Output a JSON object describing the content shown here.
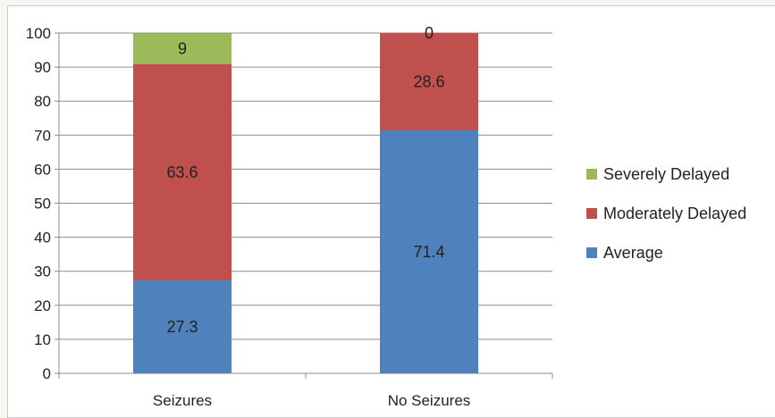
{
  "chart_data": {
    "type": "bar",
    "stacked": true,
    "categories": [
      "Seizures",
      "No Seizures"
    ],
    "series": [
      {
        "name": "Average",
        "values": [
          27.3,
          71.4
        ],
        "labels": [
          "27.3",
          "71.4"
        ],
        "color": "#4f81bd"
      },
      {
        "name": "Moderately Delayed",
        "values": [
          63.6,
          28.6
        ],
        "labels": [
          "63.6",
          "28.6"
        ],
        "color": "#c0504d"
      },
      {
        "name": "Severely Delayed",
        "values": [
          9,
          0
        ],
        "labels": [
          "9",
          "0"
        ],
        "color": "#9bbb59"
      }
    ],
    "legend_order": [
      "Severely Delayed",
      "Moderately Delayed",
      "Average"
    ],
    "ylim": [
      0,
      100
    ],
    "yticks": [
      0,
      10,
      20,
      30,
      40,
      50,
      60,
      70,
      80,
      90,
      100
    ],
    "ytick_labels": [
      "0",
      "10",
      "20",
      "30",
      "40",
      "50",
      "60",
      "70",
      "80",
      "90",
      "100"
    ],
    "grid": true,
    "legend_position": "right",
    "title": "",
    "xlabel": "",
    "ylabel": ""
  }
}
